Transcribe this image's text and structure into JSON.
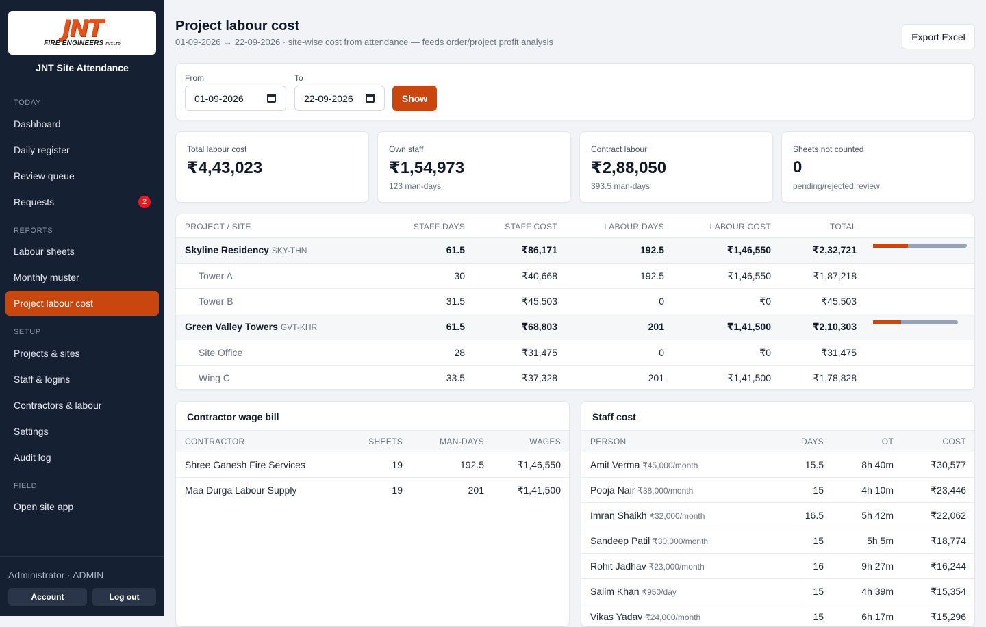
{
  "sidebar": {
    "logo_mark": "JNT",
    "logo_sub": "FIRE ENGINEERS",
    "logo_sub_small": "PVT.LTD",
    "app_title": "JNT Site Attendance",
    "sections": {
      "today": "TODAY",
      "reports": "REPORTS",
      "setup": "SETUP",
      "field": "FIELD"
    },
    "items": {
      "dashboard": "Dashboard",
      "daily_register": "Daily register",
      "review_queue": "Review queue",
      "requests": "Requests",
      "requests_badge": "2",
      "labour_sheets": "Labour sheets",
      "monthly_muster": "Monthly muster",
      "project_labour_cost": "Project labour cost",
      "projects_sites": "Projects & sites",
      "staff_logins": "Staff & logins",
      "contractors_labour": "Contractors & labour",
      "settings": "Settings",
      "audit_log": "Audit log",
      "open_site_app": "Open site app"
    },
    "footer": {
      "user": "Administrator · ADMIN",
      "account": "Account",
      "logout": "Log out"
    }
  },
  "header": {
    "title": "Project labour cost",
    "subtitle": "01-09-2026 → 22-09-2026 · site-wise cost from attendance — feeds order/project profit analysis",
    "export": "Export Excel"
  },
  "filter": {
    "from_label": "From",
    "from_value": "01-09-2026",
    "to_label": "To",
    "to_value": "22-09-2026",
    "show": "Show"
  },
  "stats": [
    {
      "label": "Total labour cost",
      "value": "₹4,43,023",
      "note": ""
    },
    {
      "label": "Own staff",
      "value": "₹1,54,973",
      "note": "123 man-days"
    },
    {
      "label": "Contract labour",
      "value": "₹2,88,050",
      "note": "393.5 man-days"
    },
    {
      "label": "Sheets not counted",
      "value": "0",
      "note": "pending/rejected review"
    }
  ],
  "project_table": {
    "headers": [
      "PROJECT / SITE",
      "STAFF DAYS",
      "STAFF COST",
      "LABOUR DAYS",
      "LABOUR COST",
      "TOTAL"
    ],
    "projects": [
      {
        "name": "Skyline Residency",
        "code": "SKY-THN",
        "staff_days": "61.5",
        "staff_cost": "₹86,171",
        "labour_days": "192.5",
        "labour_cost": "₹1,46,550",
        "total": "₹2,32,721",
        "staff_share": 0.37,
        "sites": [
          {
            "name": "Tower A",
            "staff_days": "30",
            "staff_cost": "₹40,668",
            "labour_days": "192.5",
            "labour_cost": "₹1,46,550",
            "total": "₹1,87,218"
          },
          {
            "name": "Tower B",
            "staff_days": "31.5",
            "staff_cost": "₹45,503",
            "labour_days": "0",
            "labour_cost": "₹0",
            "total": "₹45,503"
          }
        ]
      },
      {
        "name": "Green Valley Towers",
        "code": "GVT-KHR",
        "staff_days": "61.5",
        "staff_cost": "₹68,803",
        "labour_days": "201",
        "labour_cost": "₹1,41,500",
        "total": "₹2,10,303",
        "staff_share": 0.33,
        "sites": [
          {
            "name": "Site Office",
            "staff_days": "28",
            "staff_cost": "₹31,475",
            "labour_days": "0",
            "labour_cost": "₹0",
            "total": "₹31,475"
          },
          {
            "name": "Wing C",
            "staff_days": "33.5",
            "staff_cost": "₹37,328",
            "labour_days": "201",
            "labour_cost": "₹1,41,500",
            "total": "₹1,78,828"
          }
        ]
      }
    ]
  },
  "contractor_bill": {
    "title": "Contractor wage bill",
    "headers": [
      "CONTRACTOR",
      "SHEETS",
      "MAN-DAYS",
      "WAGES"
    ],
    "rows": [
      {
        "name": "Shree Ganesh Fire Services",
        "sheets": "19",
        "man_days": "192.5",
        "wages": "₹1,46,550"
      },
      {
        "name": "Maa Durga Labour Supply",
        "sheets": "19",
        "man_days": "201",
        "wages": "₹1,41,500"
      }
    ]
  },
  "staff_cost": {
    "title": "Staff cost",
    "headers": [
      "PERSON",
      "DAYS",
      "OT",
      "COST"
    ],
    "rows": [
      {
        "name": "Amit Verma",
        "rate": "₹45,000/month",
        "days": "15.5",
        "ot": "8h 40m",
        "cost": "₹30,577"
      },
      {
        "name": "Pooja Nair",
        "rate": "₹38,000/month",
        "days": "15",
        "ot": "4h 10m",
        "cost": "₹23,446"
      },
      {
        "name": "Imran Shaikh",
        "rate": "₹32,000/month",
        "days": "16.5",
        "ot": "5h 42m",
        "cost": "₹22,062"
      },
      {
        "name": "Sandeep Patil",
        "rate": "₹30,000/month",
        "days": "15",
        "ot": "5h 5m",
        "cost": "₹18,774"
      },
      {
        "name": "Rohit Jadhav",
        "rate": "₹23,000/month",
        "days": "16",
        "ot": "9h 27m",
        "cost": "₹16,244"
      },
      {
        "name": "Salim Khan",
        "rate": "₹950/day",
        "days": "15",
        "ot": "4h 39m",
        "cost": "₹15,354"
      },
      {
        "name": "Vikas Yadav",
        "rate": "₹24,000/month",
        "days": "15",
        "ot": "6h 17m",
        "cost": "₹15,296"
      }
    ]
  }
}
